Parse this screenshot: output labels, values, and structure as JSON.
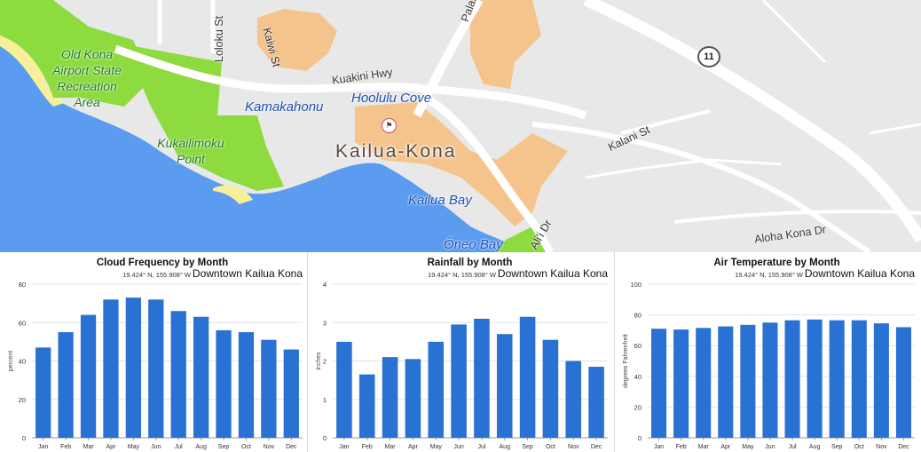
{
  "map": {
    "parks": [
      "Old Kona Airport State Recreation Area",
      "Kukailimoku Point"
    ],
    "water_labels": [
      "Kamakahonu",
      "Hoolulu Cove",
      "Kailua Bay",
      "Ōneo Bay"
    ],
    "streets": [
      "Loloku St",
      "Kaiwi St",
      "Kuakini Hwy",
      "Palani Rd",
      "Kalani St",
      "Aloha Kona Dr",
      "Ali'i Dr"
    ],
    "town": "Kailua-Kona",
    "route_shield": "11",
    "colors": {
      "land": "#e8e8e8",
      "ocean": "#5b9bf0",
      "park": "#8edb3f",
      "urban": "#f5c48d",
      "road": "#ffffff",
      "beach": "#f7ef9a"
    }
  },
  "chart_data": [
    {
      "type": "bar",
      "title": "Cloud Frequency by Month",
      "coords": "19.424° N, 155.908° W",
      "location": "Downtown Kailua Kona",
      "ylabel": "percent",
      "xlabel": "",
      "categories": [
        "Jan",
        "Feb",
        "Mar",
        "Apr",
        "May",
        "Jun",
        "Jul",
        "Aug",
        "Sep",
        "Oct",
        "Nov",
        "Dec"
      ],
      "values": [
        47,
        55,
        64,
        72,
        73,
        72,
        66,
        63,
        56,
        55,
        51,
        46
      ],
      "ylim": [
        0,
        80
      ],
      "yticks": [
        "0",
        "20",
        "40",
        "60",
        "80"
      ],
      "grid": true,
      "color": "#2a71d4"
    },
    {
      "type": "bar",
      "title": "Rainfall by Month",
      "coords": "19.424° N, 155.908° W",
      "location": "Downtown Kailua Kona",
      "ylabel": "inches",
      "xlabel": "",
      "categories": [
        "Jan",
        "Feb",
        "Mar",
        "Apr",
        "May",
        "Jun",
        "Jul",
        "Aug",
        "Sep",
        "Oct",
        "Nov",
        "Dec"
      ],
      "values": [
        2.5,
        1.65,
        2.1,
        2.05,
        2.5,
        2.95,
        3.1,
        2.7,
        3.15,
        2.55,
        2.0,
        1.85
      ],
      "ylim": [
        0,
        4
      ],
      "yticks": [
        "0",
        "1",
        "2",
        "3",
        "4"
      ],
      "grid": true,
      "color": "#2a71d4"
    },
    {
      "type": "bar",
      "title": "Air Temperature by Month",
      "coords": "19.424° N, 155.908° W",
      "location": "Downtown Kailua Kona",
      "ylabel": "degrees Fahrenheit",
      "xlabel": "",
      "categories": [
        "Jan",
        "Feb",
        "Mar",
        "Apr",
        "May",
        "Jun",
        "Jul",
        "Aug",
        "Sep",
        "Oct",
        "Nov",
        "Dec"
      ],
      "values": [
        71,
        70.5,
        71.5,
        72.5,
        73.5,
        75,
        76.5,
        77,
        76.5,
        76.5,
        74.5,
        72
      ],
      "ylim": [
        0,
        100
      ],
      "yticks": [
        "0",
        "20",
        "40",
        "60",
        "80",
        "100"
      ],
      "grid": true,
      "color": "#2a71d4"
    }
  ]
}
